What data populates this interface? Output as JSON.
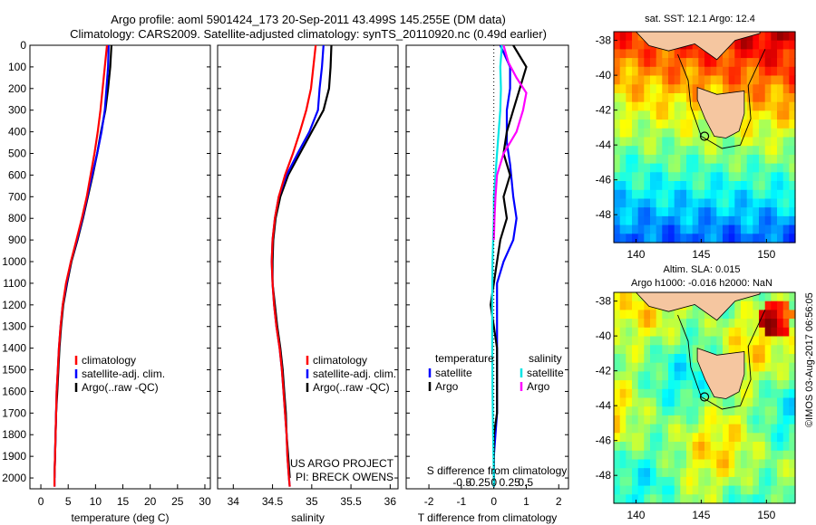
{
  "header": {
    "line1": "Argo profile: aoml 5901424_173 20-Sep-2011 43.499S 145.255E (DM data)",
    "line2": "Climatology: CARS2009. Satellite-adjusted climatology: synTS_20110920.nc (0.49d earlier)"
  },
  "credit": "©IMOS 03-Aug-2017 06:56:05",
  "chart_data": [
    {
      "id": "temperature",
      "type": "line",
      "xlabel": "temperature (deg C)",
      "xlim": [
        -2,
        31
      ],
      "xticks": [
        0,
        5,
        10,
        15,
        20,
        25,
        30
      ],
      "ylim": [
        0,
        2050
      ],
      "yticks": [
        0,
        100,
        200,
        300,
        400,
        500,
        600,
        700,
        800,
        900,
        1000,
        1100,
        1200,
        1300,
        1400,
        1500,
        1600,
        1700,
        1800,
        1900,
        2000
      ],
      "legend": [
        "climatology",
        "satellite-adj. clim.",
        "Argo(..raw -QC)"
      ],
      "series": [
        {
          "name": "Argo(..raw -QC)",
          "color": "#000000",
          "points": [
            [
              12.9,
              0
            ],
            [
              12.7,
              100
            ],
            [
              12.3,
              200
            ],
            [
              11.8,
              300
            ],
            [
              11.0,
              400
            ],
            [
              10.3,
              500
            ],
            [
              9.5,
              600
            ],
            [
              8.6,
              700
            ],
            [
              7.7,
              800
            ],
            [
              6.7,
              900
            ],
            [
              5.6,
              1000
            ],
            [
              4.8,
              1100
            ],
            [
              4.1,
              1200
            ],
            [
              3.7,
              1300
            ],
            [
              3.4,
              1400
            ],
            [
              3.2,
              1500
            ],
            [
              3.0,
              1600
            ],
            [
              2.8,
              1700
            ],
            [
              2.7,
              1800
            ],
            [
              2.6,
              1900
            ],
            [
              2.5,
              2000
            ]
          ]
        },
        {
          "name": "satellite-adj. clim.",
          "color": "#0000ff",
          "points": [
            [
              12.4,
              0
            ],
            [
              12.3,
              100
            ],
            [
              12.0,
              200
            ],
            [
              11.7,
              300
            ],
            [
              11.1,
              400
            ],
            [
              10.3,
              500
            ],
            [
              9.4,
              600
            ],
            [
              8.5,
              700
            ],
            [
              7.6,
              800
            ],
            [
              6.6,
              900
            ],
            [
              5.5,
              1000
            ],
            [
              4.7,
              1100
            ],
            [
              4.0,
              1200
            ],
            [
              3.6,
              1300
            ],
            [
              3.3,
              1400
            ],
            [
              3.1,
              1500
            ],
            [
              2.9,
              1600
            ],
            [
              2.8,
              1700
            ],
            [
              2.7,
              1800
            ],
            [
              2.6,
              1900
            ],
            [
              2.5,
              2000
            ],
            [
              2.5,
              2040
            ]
          ]
        },
        {
          "name": "climatology",
          "color": "#ff0000",
          "points": [
            [
              12.1,
              0
            ],
            [
              11.7,
              100
            ],
            [
              11.3,
              200
            ],
            [
              10.9,
              300
            ],
            [
              10.4,
              400
            ],
            [
              9.8,
              500
            ],
            [
              9.1,
              600
            ],
            [
              8.4,
              700
            ],
            [
              7.5,
              800
            ],
            [
              6.5,
              900
            ],
            [
              5.5,
              1000
            ],
            [
              4.6,
              1100
            ],
            [
              4.0,
              1200
            ],
            [
              3.6,
              1300
            ],
            [
              3.3,
              1400
            ],
            [
              3.1,
              1500
            ],
            [
              2.9,
              1600
            ],
            [
              2.8,
              1700
            ],
            [
              2.7,
              1800
            ],
            [
              2.6,
              1900
            ],
            [
              2.5,
              2000
            ],
            [
              2.5,
              2040
            ]
          ]
        }
      ]
    },
    {
      "id": "salinity",
      "type": "line",
      "xlabel": "salinity",
      "xlim": [
        33.8,
        36.1
      ],
      "xticks": [
        34,
        34.5,
        35,
        35.5,
        36
      ],
      "xtick_labels": [
        "34",
        "34.5",
        "35",
        "35.5",
        "36"
      ],
      "ylim": [
        0,
        2050
      ],
      "legend": [
        "climatology",
        "satellite-adj. clim.",
        "Argo(..raw -QC)"
      ],
      "annotation": [
        "US ARGO PROJECT",
        "PI: BRECK OWENS"
      ],
      "series": [
        {
          "name": "Argo(..raw -QC)",
          "color": "#000000",
          "points": [
            [
              35.25,
              0
            ],
            [
              35.24,
              100
            ],
            [
              35.22,
              200
            ],
            [
              35.15,
              300
            ],
            [
              35.0,
              400
            ],
            [
              34.85,
              500
            ],
            [
              34.7,
              600
            ],
            [
              34.6,
              700
            ],
            [
              34.54,
              800
            ],
            [
              34.51,
              900
            ],
            [
              34.5,
              1000
            ],
            [
              34.5,
              1100
            ],
            [
              34.53,
              1200
            ],
            [
              34.56,
              1300
            ],
            [
              34.6,
              1400
            ],
            [
              34.63,
              1500
            ],
            [
              34.65,
              1600
            ],
            [
              34.67,
              1700
            ],
            [
              34.68,
              1800
            ],
            [
              34.7,
              1900
            ],
            [
              34.72,
              2000
            ]
          ]
        },
        {
          "name": "satellite-adj. clim.",
          "color": "#0000ff",
          "points": [
            [
              35.15,
              0
            ],
            [
              35.13,
              100
            ],
            [
              35.1,
              200
            ],
            [
              35.08,
              300
            ],
            [
              34.97,
              400
            ],
            [
              34.82,
              500
            ],
            [
              34.68,
              600
            ],
            [
              34.58,
              700
            ],
            [
              34.53,
              800
            ],
            [
              34.5,
              900
            ],
            [
              34.49,
              1000
            ],
            [
              34.5,
              1100
            ],
            [
              34.52,
              1200
            ],
            [
              34.55,
              1300
            ],
            [
              34.59,
              1400
            ],
            [
              34.62,
              1500
            ],
            [
              34.64,
              1600
            ],
            [
              34.66,
              1700
            ],
            [
              34.68,
              1800
            ],
            [
              34.69,
              1900
            ],
            [
              34.71,
              2000
            ],
            [
              34.72,
              2040
            ]
          ]
        },
        {
          "name": "climatology",
          "color": "#ff0000",
          "points": [
            [
              35.05,
              0
            ],
            [
              35.02,
              100
            ],
            [
              34.99,
              200
            ],
            [
              34.93,
              300
            ],
            [
              34.85,
              400
            ],
            [
              34.76,
              500
            ],
            [
              34.66,
              600
            ],
            [
              34.58,
              700
            ],
            [
              34.53,
              800
            ],
            [
              34.5,
              900
            ],
            [
              34.49,
              1000
            ],
            [
              34.5,
              1100
            ],
            [
              34.52,
              1200
            ],
            [
              34.55,
              1300
            ],
            [
              34.59,
              1400
            ],
            [
              34.62,
              1500
            ],
            [
              34.64,
              1600
            ],
            [
              34.66,
              1700
            ],
            [
              34.68,
              1800
            ],
            [
              34.69,
              1900
            ],
            [
              34.71,
              2000
            ],
            [
              34.72,
              2040
            ]
          ]
        }
      ]
    },
    {
      "id": "difference",
      "type": "line",
      "xlabel": "T difference from climatology",
      "xlabel2": "S difference from climatology",
      "xlim": [
        -2.7,
        2.3
      ],
      "xticks": [
        -2,
        -1,
        0,
        1,
        2
      ],
      "top_axis_ticks": [
        -0.5,
        -0.25,
        0,
        0.25,
        0.5
      ],
      "top_axis_labels": [
        "-0.5",
        "-0.25",
        "0",
        "0.25",
        "0.5"
      ],
      "ylim": [
        0,
        2050
      ],
      "legend_temperature_title": "temperature",
      "legend_salinity_title": "salinity",
      "legend_temperature": [
        "satellite",
        "Argo"
      ],
      "legend_salinity": [
        "satellite",
        "Argo"
      ],
      "series": [
        {
          "name": "T satellite",
          "color": "#0000ff",
          "points": [
            [
              0.2,
              0
            ],
            [
              0.5,
              100
            ],
            [
              0.5,
              200
            ],
            [
              0.4,
              300
            ],
            [
              0.4,
              450
            ],
            [
              0.5,
              550
            ],
            [
              0.6,
              700
            ],
            [
              0.7,
              800
            ],
            [
              0.6,
              900
            ],
            [
              0.3,
              1000
            ],
            [
              0.1,
              1100
            ],
            [
              0.1,
              1300
            ],
            [
              0.1,
              1500
            ],
            [
              0.1,
              1700
            ],
            [
              0.0,
              1900
            ],
            [
              0.0,
              2040
            ]
          ]
        },
        {
          "name": "T Argo",
          "color": "#000000",
          "points": [
            [
              0.6,
              0
            ],
            [
              0.8,
              50
            ],
            [
              1.0,
              100
            ],
            [
              0.8,
              200
            ],
            [
              0.6,
              300
            ],
            [
              0.4,
              400
            ],
            [
              0.3,
              500
            ],
            [
              0.5,
              600
            ],
            [
              0.3,
              700
            ],
            [
              0.4,
              800
            ],
            [
              0.2,
              900
            ],
            [
              0.1,
              1000
            ],
            [
              0.0,
              1100
            ],
            [
              -0.1,
              1200
            ],
            [
              0.0,
              1300
            ],
            [
              0.1,
              1400
            ],
            [
              0.1,
              1500
            ],
            [
              0.1,
              1600
            ],
            [
              0.1,
              1700
            ],
            [
              0.0,
              1800
            ],
            [
              0.0,
              2040
            ]
          ]
        },
        {
          "name": "S satellite",
          "color": "#00e5e5",
          "points": [
            [
              0.25,
              0
            ],
            [
              0.2,
              100
            ],
            [
              0.22,
              200
            ],
            [
              0.2,
              300
            ],
            [
              0.15,
              400
            ],
            [
              0.1,
              500
            ],
            [
              0.05,
              600
            ],
            [
              0.0,
              700
            ],
            [
              0.0,
              800
            ],
            [
              -0.02,
              900
            ],
            [
              -0.04,
              1000
            ],
            [
              -0.05,
              1200
            ],
            [
              -0.05,
              1400
            ],
            [
              -0.04,
              1600
            ],
            [
              -0.02,
              1800
            ],
            [
              0.0,
              2000
            ],
            [
              0.0,
              2040
            ]
          ]
        },
        {
          "name": "S Argo",
          "color": "#ff00ff",
          "points": [
            [
              0.3,
              0
            ],
            [
              0.45,
              80
            ],
            [
              0.7,
              150
            ],
            [
              1.0,
              220
            ],
            [
              0.9,
              300
            ],
            [
              0.7,
              400
            ],
            [
              0.5,
              450
            ],
            [
              0.3,
              500
            ],
            [
              0.1,
              600
            ],
            [
              0.05,
              700
            ],
            [
              0.02,
              800
            ],
            [
              0.0,
              900
            ]
          ]
        }
      ]
    },
    {
      "id": "sst_map",
      "type": "heatmap",
      "title": "sat. SST: 12.1  Argo: 12.4",
      "xticks": [
        140,
        145,
        150
      ],
      "yticks": [
        -38,
        -40,
        -42,
        -44,
        -46,
        -48
      ],
      "marker": {
        "lon": 145.255,
        "lat": -43.499
      }
    },
    {
      "id": "sla_map",
      "type": "heatmap",
      "title": "Altim. SLA: 0.015",
      "subtitle": "Argo h1000: -0.016 h2000: NaN",
      "xticks": [
        140,
        145,
        150
      ],
      "yticks": [
        -38,
        -40,
        -42,
        -44,
        -46,
        -48
      ],
      "marker": {
        "lon": 145.255,
        "lat": -43.499
      }
    }
  ]
}
